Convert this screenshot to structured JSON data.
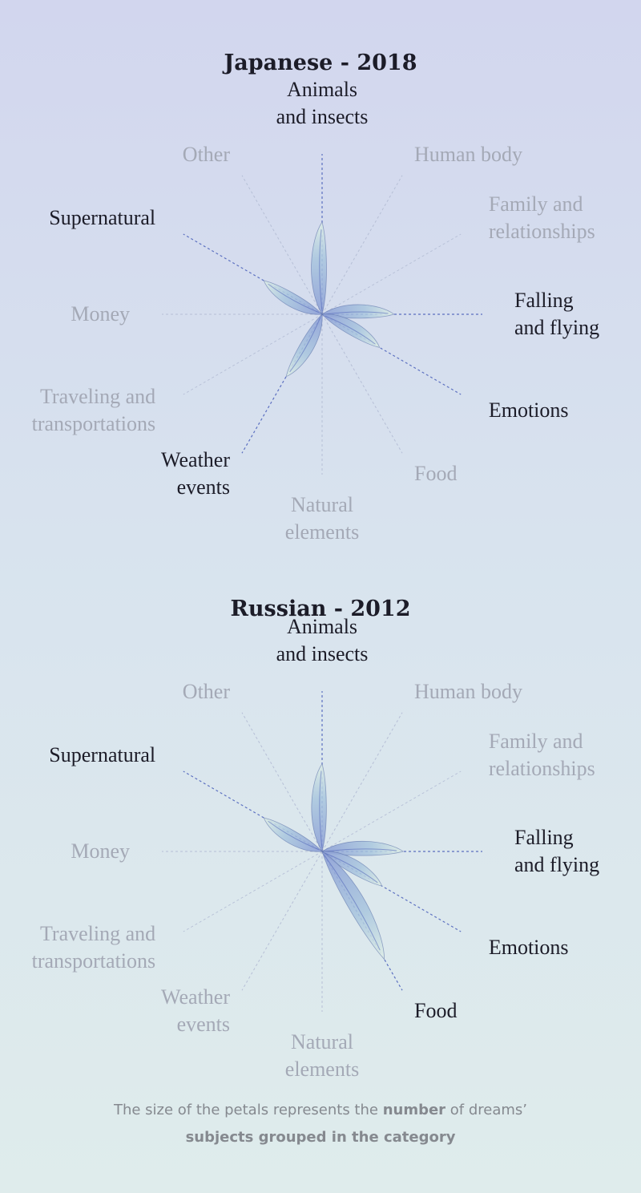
{
  "colors": {
    "active_text": "#1c1c28",
    "inactive_text": "#a4a9b6",
    "active_line": "#5b6fc0",
    "inactive_line": "#b6bfd6",
    "petal_fill": "#a9c6de",
    "petal_stroke": "#5a6fa8"
  },
  "chart_data": [
    {
      "type": "radial-petal",
      "title": "Japanese - 2018",
      "categories": [
        "Animals and insects",
        "Human body",
        "Family and relationships",
        "Falling and flying",
        "Emotions",
        "Food",
        "Natural elements",
        "Weather events",
        "Traveling and transportations",
        "Money",
        "Supernatural",
        "Other"
      ],
      "label_lines": [
        [
          "Animals",
          "and insects"
        ],
        [
          "Human body"
        ],
        [
          "Family and",
          "relationships"
        ],
        [
          "Falling",
          "and flying"
        ],
        [
          "Emotions"
        ],
        [
          "Food"
        ],
        [
          "Natural",
          "elements"
        ],
        [
          "Weather",
          "events"
        ],
        [
          "Traveling and",
          "transportations"
        ],
        [
          "Money"
        ],
        [
          "Supernatural"
        ],
        [
          "Other"
        ]
      ],
      "values": [
        1.0,
        0,
        0,
        0.78,
        0.72,
        0,
        0,
        0.78,
        0,
        0,
        0.73,
        0
      ],
      "active": [
        true,
        false,
        false,
        true,
        true,
        false,
        false,
        true,
        false,
        false,
        true,
        false
      ]
    },
    {
      "type": "radial-petal",
      "title": "Russian - 2012",
      "categories": [
        "Animals and insects",
        "Human body",
        "Family and relationships",
        "Falling and flying",
        "Emotions",
        "Food",
        "Natural elements",
        "Weather events",
        "Traveling and transportations",
        "Money",
        "Supernatural",
        "Other"
      ],
      "label_lines": [
        [
          "Animals",
          "and insects"
        ],
        [
          "Human body"
        ],
        [
          "Family and",
          "relationships"
        ],
        [
          "Falling",
          "and flying"
        ],
        [
          "Emotions"
        ],
        [
          "Food"
        ],
        [
          "Natural",
          "elements"
        ],
        [
          "Weather",
          "events"
        ],
        [
          "Traveling and",
          "transportations"
        ],
        [
          "Money"
        ],
        [
          "Supernatural"
        ],
        [
          "Other"
        ]
      ],
      "values": [
        0.95,
        0,
        0,
        0.88,
        0.75,
        1.35,
        0,
        0,
        0,
        0,
        0.73,
        0
      ],
      "active": [
        true,
        false,
        false,
        true,
        true,
        true,
        false,
        false,
        false,
        false,
        true,
        false
      ]
    }
  ],
  "footer": {
    "line1_before": "The size of the petals represents the ",
    "line1_bold": "number",
    "line1_after": " of dreams’",
    "line2_bold": "subjects grouped in the category"
  }
}
